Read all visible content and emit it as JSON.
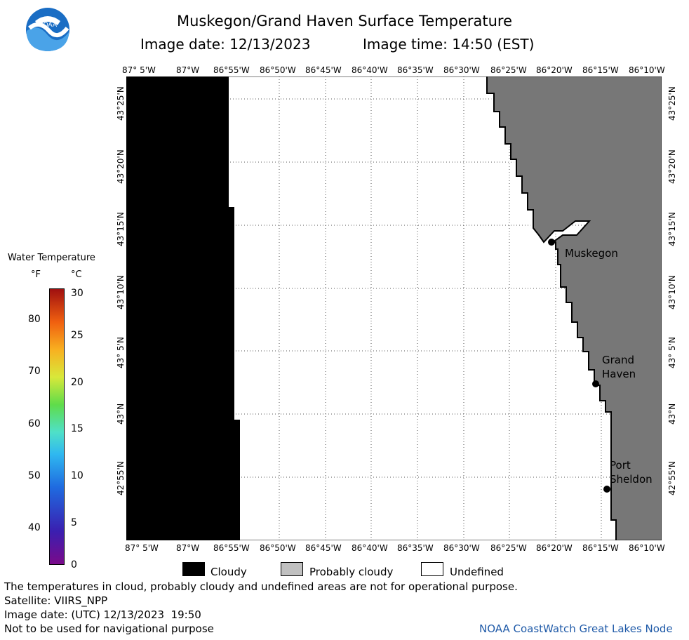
{
  "logo": {
    "text": "NOAA"
  },
  "title": "Muskegon/Grand Haven Surface Temperature",
  "image_date_label": "Image date: 12/13/2023",
  "image_time_label": "Image time: 14:50 (EST)",
  "lon_ticks": [
    "87° 5'W",
    "87°W",
    "86°55'W",
    "86°50'W",
    "86°45'W",
    "86°40'W",
    "86°35'W",
    "86°30'W",
    "86°25'W",
    "86°20'W",
    "86°15'W",
    "86°10'W"
  ],
  "lat_ticks": [
    "43°25'N",
    "43°20'N",
    "43°15'N",
    "43°10'N",
    "43° 5'N",
    "43°N",
    "42°55'N"
  ],
  "places": [
    {
      "name_lines": [
        "Muskegon"
      ]
    },
    {
      "name_lines": [
        "Grand",
        "Haven"
      ]
    },
    {
      "name_lines": [
        "Port",
        "Sheldon"
      ]
    }
  ],
  "colorbar": {
    "title": "Water Temperature",
    "unit_f": "°F",
    "unit_c": "°C",
    "f_ticks": [
      "80",
      "70",
      "60",
      "50",
      "40"
    ],
    "c_ticks": [
      "30",
      "25",
      "20",
      "15",
      "10",
      "5",
      "0"
    ]
  },
  "legend": {
    "cloudy": "Cloudy",
    "probably_cloudy": "Probably cloudy",
    "undefined": "Undefined"
  },
  "footer": {
    "note": "The temperatures in cloud, probably cloudy and undefined areas are not for operational purpose.",
    "satellite": "Satellite: VIIRS_NPP",
    "utc_date": "Image date: (UTC) 12/13/2023  19:50",
    "nav_note": "Not to be used for navigational purpose",
    "credit": "NOAA CoastWatch Great Lakes Node"
  },
  "colors": {
    "cloudy": "#000000",
    "land": "#7a7a7a",
    "undefined": "#ffffff",
    "probably_cloudy": "#c0c0c0"
  }
}
